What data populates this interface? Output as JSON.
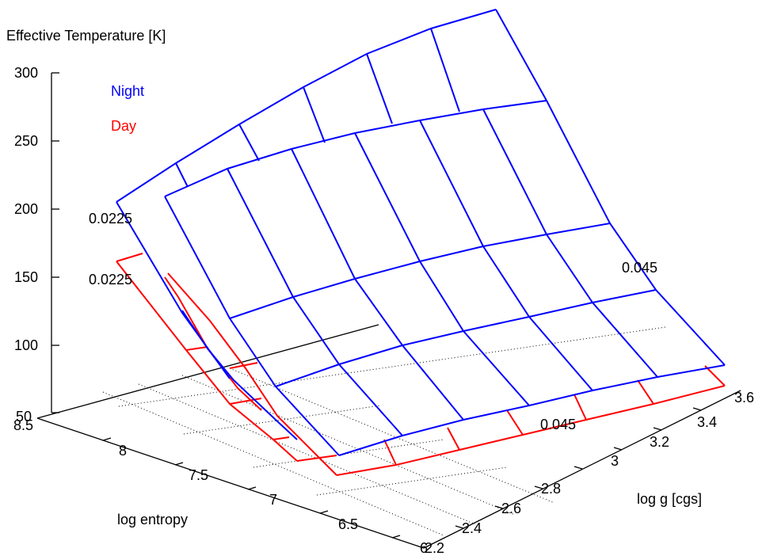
{
  "chart_data": {
    "type": "surface3d",
    "zlabel": "Effective Temperature [K]",
    "xlabel": "log entropy",
    "ylabel": "log g [cgs]",
    "zlim": [
      50,
      300
    ],
    "z_ticks": [
      "50",
      "100",
      "150",
      "200",
      "250",
      "300"
    ],
    "x_ticks": [
      "6",
      "6.5",
      "7",
      "7.5",
      "8",
      "8.5"
    ],
    "y_ticks": [
      "2.2",
      "2.4",
      "2.6",
      "2.8",
      "3",
      "3.2",
      "3.4",
      "3.6"
    ],
    "legend": {
      "placement": "top-left",
      "entries": [
        {
          "name": "Night",
          "color": "#0000ff"
        },
        {
          "name": "Day",
          "color": "#ff0000"
        }
      ]
    },
    "annotations": [
      "0.0225",
      "0.0225",
      "0.045",
      "0.045"
    ],
    "colors": {
      "night": "#0000ff",
      "day": "#ff0000",
      "grid": "#000000"
    }
  }
}
